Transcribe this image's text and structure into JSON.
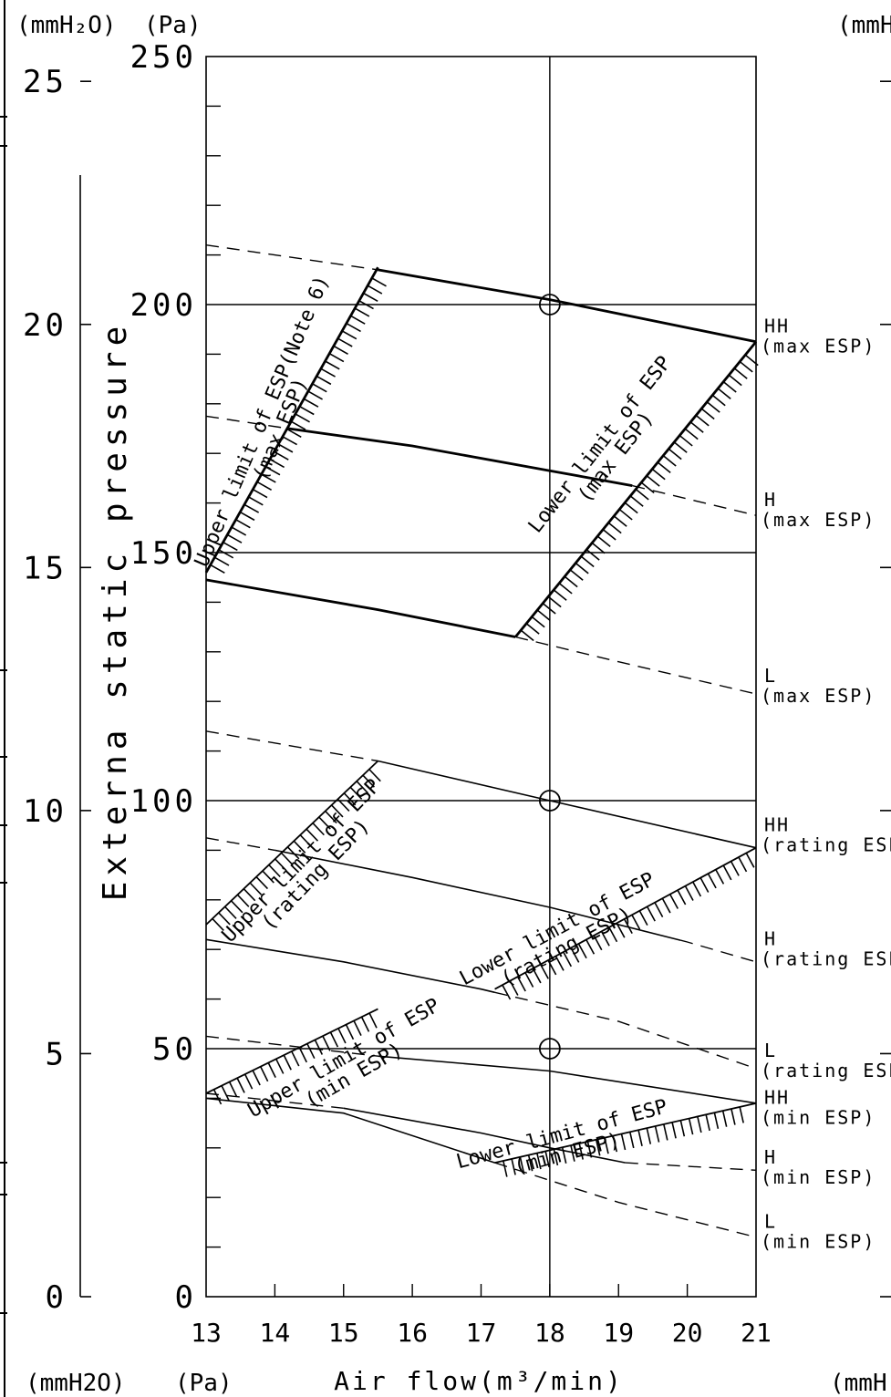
{
  "chart_data": {
    "type": "line",
    "xlabel": "Air flow(m³/min)",
    "ylabel": "Externa static pressure",
    "unit_labels": {
      "top_mm": "(mmH₂O)",
      "top_pa": "(Pa)",
      "top_right_mm": "(mmH",
      "bottom_mm": "(mmH2O)",
      "bottom_pa": "(Pa)",
      "bottom_right_mm": "(mmH"
    },
    "xlim": [
      13,
      21
    ],
    "ylim": [
      0,
      250
    ],
    "x_ticks": [
      13,
      14,
      15,
      16,
      17,
      18,
      19,
      20,
      21
    ],
    "y_ticks_pa": [
      0,
      50,
      100,
      150,
      200,
      250
    ],
    "y_ticks_mm": [
      0,
      5,
      10,
      15,
      20,
      25
    ],
    "grid": {
      "x": [
        18
      ],
      "y": [
        50,
        100,
        150,
        200
      ]
    },
    "rated_points": [
      {
        "x": 18,
        "y": 50
      },
      {
        "x": 18,
        "y": 100
      },
      {
        "x": 18,
        "y": 200
      }
    ],
    "series": [
      {
        "name": "HH (max ESP)",
        "group": "max",
        "style": "solid-bold",
        "points": [
          [
            13,
            212
          ],
          [
            15.5,
            207
          ],
          [
            18,
            201
          ],
          [
            21,
            192.5
          ]
        ],
        "solid_range": [
          15.5,
          21
        ]
      },
      {
        "name": "H (max ESP)",
        "group": "max",
        "style": "solid-bold",
        "points": [
          [
            13,
            177.5
          ],
          [
            14.2,
            175
          ],
          [
            16,
            171.5
          ],
          [
            18,
            166.5
          ],
          [
            19.2,
            163.5
          ],
          [
            21,
            157.5
          ]
        ],
        "solid_range": [
          14.2,
          19.2
        ]
      },
      {
        "name": "L (max ESP)",
        "group": "max",
        "style": "solid-bold",
        "points": [
          [
            13,
            144.5
          ],
          [
            15.5,
            138.5
          ],
          [
            17.5,
            133
          ],
          [
            19,
            128
          ],
          [
            21,
            121.5
          ]
        ],
        "solid_range": [
          13,
          17.5
        ]
      },
      {
        "name": "HH (rating ESP)",
        "group": "rating",
        "style": "solid",
        "points": [
          [
            13,
            114
          ],
          [
            15.5,
            108
          ],
          [
            18,
            100
          ],
          [
            21,
            90.5
          ]
        ],
        "solid_range": [
          15.5,
          21
        ]
      },
      {
        "name": "H (rating ESP)",
        "group": "rating",
        "style": "solid",
        "points": [
          [
            13,
            92.5
          ],
          [
            14,
            90
          ],
          [
            16,
            84.5
          ],
          [
            18,
            78.5
          ],
          [
            20,
            71.5
          ],
          [
            21,
            67.5
          ]
        ],
        "solid_range": [
          14,
          19.9
        ]
      },
      {
        "name": "L (rating ESP)",
        "group": "rating",
        "style": "solid",
        "points": [
          [
            13,
            72
          ],
          [
            15,
            67.5
          ],
          [
            17,
            62
          ],
          [
            19,
            55.5
          ],
          [
            21,
            46
          ]
        ],
        "solid_range": [
          13,
          17.2
        ]
      },
      {
        "name": "HH (min ESP)",
        "group": "min",
        "style": "solid",
        "points": [
          [
            13,
            52.5
          ],
          [
            15.5,
            48.5
          ],
          [
            18,
            45.5
          ],
          [
            21,
            39
          ]
        ],
        "solid_range": [
          15.5,
          21
        ]
      },
      {
        "name": "H (min ESP)",
        "group": "min",
        "style": "solid",
        "points": [
          [
            13,
            41
          ],
          [
            15,
            38
          ],
          [
            17,
            33
          ],
          [
            18,
            30
          ],
          [
            19.1,
            27
          ],
          [
            21,
            25.5
          ]
        ],
        "solid_range": [
          15,
          19.1
        ]
      },
      {
        "name": "L (min ESP)",
        "group": "min",
        "style": "solid",
        "points": [
          [
            13,
            40
          ],
          [
            15,
            37
          ],
          [
            17.2,
            27
          ],
          [
            19,
            19
          ],
          [
            21,
            12
          ]
        ],
        "solid_range": [
          13,
          17.2
        ]
      }
    ],
    "limit_lines": [
      {
        "name": "Upper limit of ESP(Note 6) (max ESP)",
        "kind": "upper",
        "style": "bold",
        "points": [
          [
            13,
            146
          ],
          [
            15.5,
            207.5
          ]
        ]
      },
      {
        "name": "Lower limit of ESP (max ESP)",
        "kind": "lower",
        "style": "bold",
        "points": [
          [
            17.5,
            133
          ],
          [
            21,
            192.5
          ]
        ]
      },
      {
        "name": "Upper limit of ESP (rating ESP)",
        "kind": "upper",
        "style": "normal",
        "points": [
          [
            13,
            75
          ],
          [
            15.5,
            108
          ]
        ]
      },
      {
        "name": "Lower limit of ESP (rating ESP)",
        "kind": "lower",
        "style": "normal",
        "points": [
          [
            17.2,
            62
          ],
          [
            21,
            90.5
          ]
        ]
      },
      {
        "name": "Upper limit of ESP (min ESP)",
        "kind": "upper",
        "style": "normal",
        "points": [
          [
            13,
            41
          ],
          [
            15.5,
            58
          ]
        ]
      },
      {
        "name": "Lower limit of ESP (min ESP)",
        "kind": "lower",
        "style": "normal",
        "points": [
          [
            17.2,
            27
          ],
          [
            21,
            39
          ]
        ]
      }
    ],
    "right_labels": [
      {
        "line1": "HH",
        "line2": "(max ESP)",
        "y": 194
      },
      {
        "line1": "H",
        "line2": "(max ESP)",
        "y": 159
      },
      {
        "line1": "L",
        "line2": "(max ESP)",
        "y": 123.5
      },
      {
        "line1": "HH",
        "line2": "(rating ESP)",
        "y": 93.5
      },
      {
        "line1": "H",
        "line2": "(rating ESP)",
        "y": 70.5
      },
      {
        "line1": "L",
        "line2": "(rating ESP)",
        "y": 48
      },
      {
        "line1": "HH",
        "line2": "(min ESP)",
        "y": 38.5
      },
      {
        "line1": "H",
        "line2": "(min ESP)",
        "y": 26.5
      },
      {
        "line1": "L",
        "line2": "(min ESP)",
        "y": 13.5
      }
    ],
    "annotations": [
      {
        "line1": "Upper limit of ESP(Note 6)",
        "line2": "(max ESP)",
        "x": 13.9,
        "y": 176,
        "angle": -67
      },
      {
        "line1": "Lower limit of ESP",
        "line2": "(max ESP)",
        "x": 18.8,
        "y": 171,
        "angle": -52
      },
      {
        "line1": "Upper limit of ESP",
        "line2": "(rating ESP)",
        "x": 14.45,
        "y": 87,
        "angle": -46
      },
      {
        "line1": "Lower limit of ESP",
        "line2": "(rating ESP)",
        "x": 18.15,
        "y": 73,
        "angle": -28
      },
      {
        "line1": "Upper limit of ESP",
        "line2": "(min ESP)",
        "x": 15.05,
        "y": 47,
        "angle": -30
      },
      {
        "line1": "Lower limit of ESP",
        "line2": "(min ESP)",
        "x": 18.2,
        "y": 31.5,
        "angle": -15
      }
    ]
  }
}
